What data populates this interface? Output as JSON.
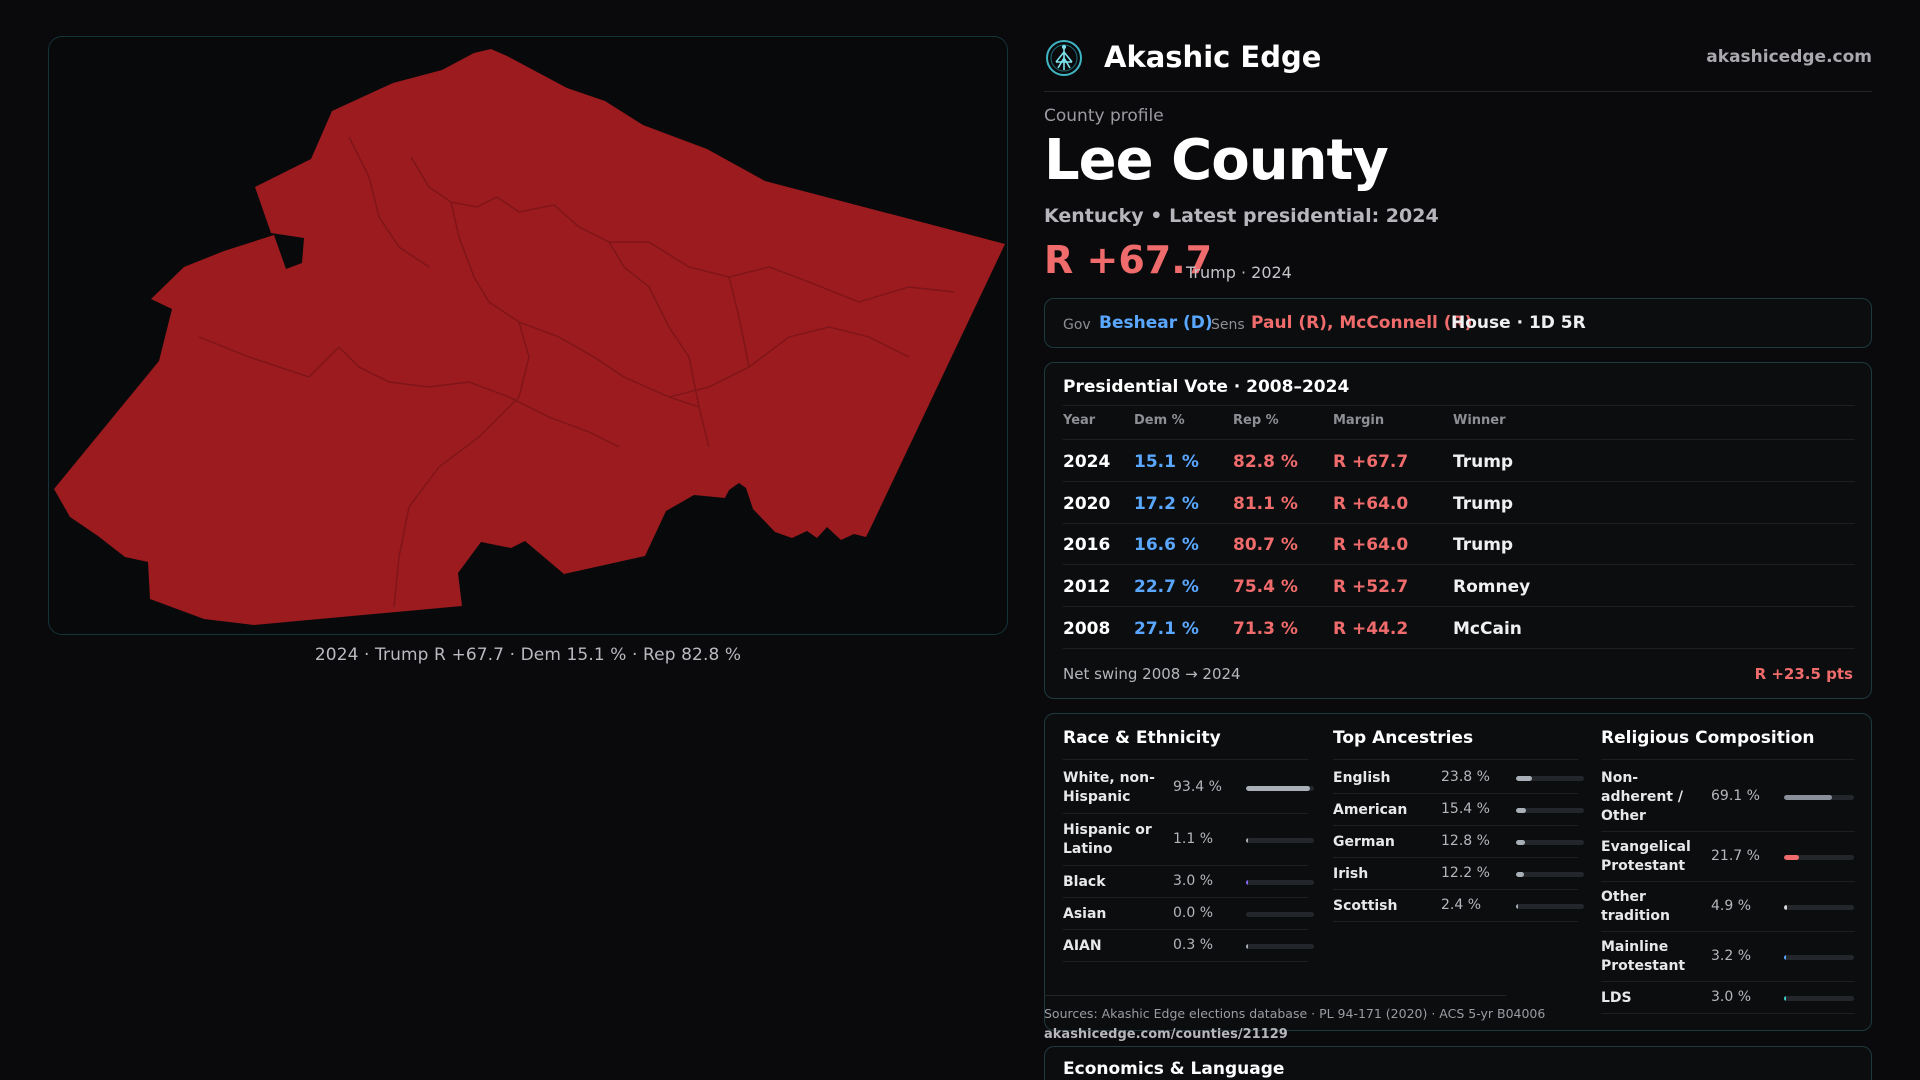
{
  "map": {
    "caption": "2024 · Trump R +67.7 · Dem 15.1 % · Rep 82.8 %",
    "fill_color": "#9b1b1f"
  },
  "brand": {
    "name": "Akashic Edge",
    "site": "akashicedge.com",
    "logo_icon": "tree-of-life-icon"
  },
  "profile": {
    "kicker": "County profile",
    "county": "Lee County",
    "subline": "Kentucky • Latest presidential: 2024",
    "margin": "R +67.7",
    "margin_note": "Trump · 2024"
  },
  "officials": {
    "gov_label": "Gov",
    "gov": "Beshear (D)",
    "sens_label": "Sens",
    "sens": "Paul (R), McConnell (R)",
    "house": "House · 1D 5R"
  },
  "presidential": {
    "title": "Presidential Vote · 2008–2024",
    "headers": [
      "Year",
      "Dem %",
      "Rep %",
      "Margin",
      "Winner"
    ],
    "rows": [
      {
        "year": "2024",
        "dem": "15.1 %",
        "rep": "82.8 %",
        "margin": "R +67.7",
        "winner": "Trump"
      },
      {
        "year": "2020",
        "dem": "17.2 %",
        "rep": "81.1 %",
        "margin": "R +64.0",
        "winner": "Trump"
      },
      {
        "year": "2016",
        "dem": "16.6 %",
        "rep": "80.7 %",
        "margin": "R +64.0",
        "winner": "Trump"
      },
      {
        "year": "2012",
        "dem": "22.7 %",
        "rep": "75.4 %",
        "margin": "R +52.7",
        "winner": "Romney"
      },
      {
        "year": "2008",
        "dem": "27.1 %",
        "rep": "71.3 %",
        "margin": "R +44.2",
        "winner": "McCain"
      }
    ],
    "swing_label": "Net swing 2008 → 2024",
    "swing_value": "R +23.5 pts"
  },
  "race": {
    "title": "Race & Ethnicity",
    "rows": [
      {
        "label": "White, non-Hispanic",
        "value": "93.4 %",
        "pct": 93.4,
        "color": "#aab0b8"
      },
      {
        "label": "Hispanic or Latino",
        "value": "1.1 %",
        "pct": 1.1,
        "color": "#aab0b8"
      },
      {
        "label": "Black",
        "value": "3.0 %",
        "pct": 3.0,
        "color": "#8a6bff"
      },
      {
        "label": "Asian",
        "value": "0.0 %",
        "pct": 0.0,
        "color": "#aab0b8"
      },
      {
        "label": "AIAN",
        "value": "0.3 %",
        "pct": 0.3,
        "color": "#aab0b8"
      }
    ]
  },
  "ancestry": {
    "title": "Top Ancestries",
    "rows": [
      {
        "label": "English",
        "value": "23.8 %",
        "pct": 23.8,
        "color": "#aab0b8"
      },
      {
        "label": "American",
        "value": "15.4 %",
        "pct": 15.4,
        "color": "#aab0b8"
      },
      {
        "label": "German",
        "value": "12.8 %",
        "pct": 12.8,
        "color": "#aab0b8"
      },
      {
        "label": "Irish",
        "value": "12.2 %",
        "pct": 12.2,
        "color": "#aab0b8"
      },
      {
        "label": "Scottish",
        "value": "2.4 %",
        "pct": 2.4,
        "color": "#aab0b8"
      }
    ]
  },
  "religion": {
    "title": "Religious Composition",
    "rows": [
      {
        "label": "Non-adherent / Other",
        "value": "69.1 %",
        "pct": 69.1,
        "color": "#8a9099"
      },
      {
        "label": "Evangelical Protestant",
        "value": "21.7 %",
        "pct": 21.7,
        "color": "#f06b6b"
      },
      {
        "label": "Other tradition",
        "value": "4.9 %",
        "pct": 4.9,
        "color": "#d7d7dc"
      },
      {
        "label": "Mainline Protestant",
        "value": "3.2 %",
        "pct": 3.2,
        "color": "#5aa7ff"
      },
      {
        "label": "LDS",
        "value": "3.0 %",
        "pct": 3.0,
        "color": "#3fd0c9"
      }
    ]
  },
  "sources": {
    "text": "Sources: Akashic Edge elections database · PL 94-171 (2020) · ACS 5-yr B04006",
    "url": "akashicedge.com/counties/21129"
  },
  "economics": {
    "title": "Economics & Language"
  }
}
